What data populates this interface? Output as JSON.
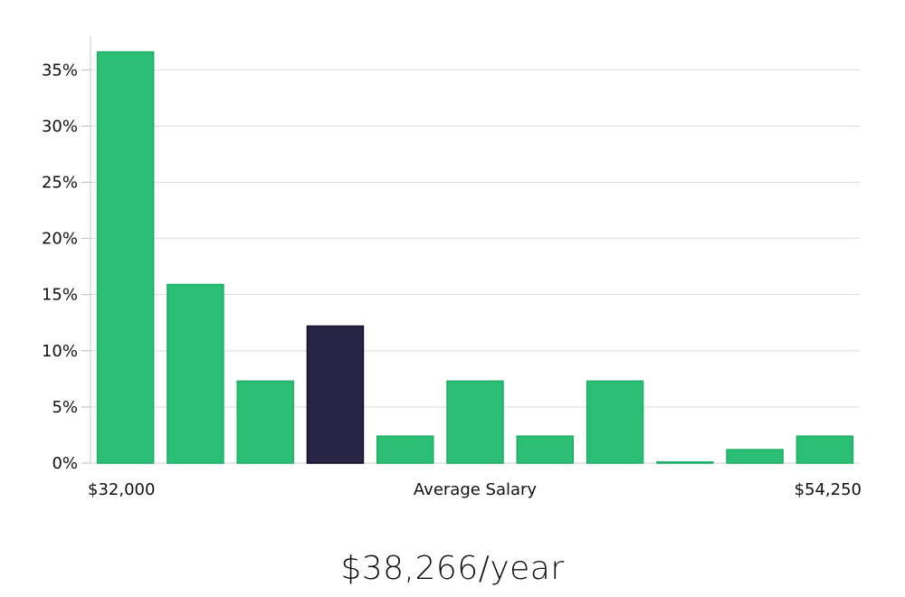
{
  "chart_data": {
    "type": "bar",
    "title": "",
    "xlabel": "Average Salary",
    "x_min_label": "$32,000",
    "x_max_label": "$54,250",
    "ylabel": "",
    "ylim": [
      0,
      38
    ],
    "yticks": [
      0,
      5,
      10,
      15,
      20,
      25,
      30,
      35
    ],
    "ytick_suffix": "%",
    "grid": true,
    "values": [
      36.6,
      15.9,
      7.3,
      12.2,
      2.4,
      7.3,
      2.4,
      7.3,
      0.1,
      1.2,
      2.4
    ],
    "highlight_index": 3,
    "colors": {
      "bar": "#2abf75",
      "bar_stroke": "#1fae66",
      "highlight": "#272545",
      "highlight_stroke": "#0f0e2a",
      "grid": "#dddddd",
      "axis": "#cccccc"
    }
  },
  "summary": {
    "salary_text": "$38,266/year"
  }
}
